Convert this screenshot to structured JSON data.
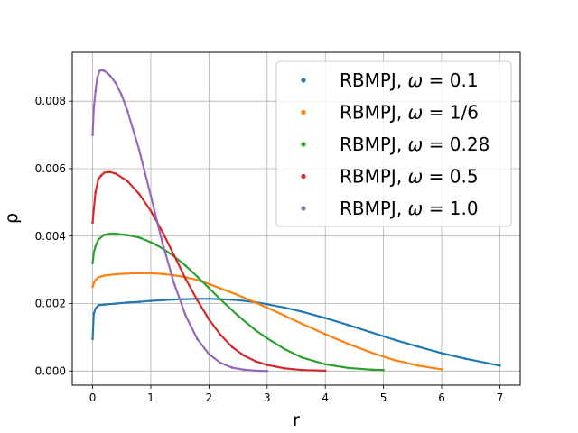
{
  "chart_data": {
    "type": "scatter",
    "title": "",
    "xlabel": "r",
    "ylabel": "ρ",
    "xlim": [
      -0.35,
      7.35
    ],
    "ylim": [
      -0.00042,
      0.00945
    ],
    "x_ticks": [
      0,
      1,
      2,
      3,
      4,
      5,
      6,
      7
    ],
    "x_tick_labels": [
      "0",
      "1",
      "2",
      "3",
      "4",
      "5",
      "6",
      "7"
    ],
    "y_ticks": [
      0,
      0.002,
      0.004,
      0.006,
      0.008
    ],
    "y_tick_labels": [
      "0.000",
      "0.002",
      "0.004",
      "0.006",
      "0.008"
    ],
    "grid": true,
    "legend_position": "top-right",
    "series": [
      {
        "name": "RBMPJ, ω = 0.1",
        "legend": {
          "prefix": "RBMPJ, ",
          "symbol": "ω",
          "suffix": " = 0.1"
        },
        "color": "#1f77b4",
        "x": [
          0.0,
          0.02,
          0.05,
          0.1,
          0.2,
          0.4,
          0.6,
          0.8,
          1.0,
          1.2,
          1.4,
          1.6,
          1.8,
          2.0,
          2.2,
          2.5,
          2.8,
          3.0,
          3.3,
          3.6,
          4.0,
          4.4,
          4.8,
          5.2,
          5.6,
          6.0,
          6.4,
          6.8,
          7.0
        ],
        "y": [
          0.00095,
          0.0017,
          0.00185,
          0.00195,
          0.00197,
          0.002,
          0.00203,
          0.00205,
          0.00208,
          0.0021,
          0.00212,
          0.00213,
          0.00214,
          0.00214,
          0.00213,
          0.0021,
          0.00204,
          0.00198,
          0.00188,
          0.00176,
          0.00157,
          0.00136,
          0.00114,
          0.00092,
          0.00072,
          0.00053,
          0.00037,
          0.00023,
          0.00016
        ]
      },
      {
        "name": "RBMPJ, ω = 1/6",
        "legend": {
          "prefix": "RBMPJ, ",
          "symbol": "ω",
          "suffix": " = 1/6"
        },
        "color": "#ff7f0e",
        "x": [
          0.0,
          0.02,
          0.05,
          0.1,
          0.2,
          0.4,
          0.6,
          0.8,
          1.0,
          1.2,
          1.4,
          1.6,
          1.8,
          2.0,
          2.2,
          2.5,
          2.8,
          3.0,
          3.3,
          3.6,
          4.0,
          4.4,
          4.8,
          5.2,
          5.6,
          6.0
        ],
        "y": [
          0.0025,
          0.0026,
          0.0027,
          0.00278,
          0.00283,
          0.00287,
          0.00289,
          0.0029,
          0.0029,
          0.00288,
          0.00284,
          0.00278,
          0.0027,
          0.00258,
          0.00245,
          0.00225,
          0.00203,
          0.00188,
          0.00164,
          0.0014,
          0.00109,
          0.0008,
          0.00054,
          0.00032,
          0.00016,
          5e-05
        ]
      },
      {
        "name": "RBMPJ, ω = 0.28",
        "legend": {
          "prefix": "RBMPJ, ",
          "symbol": "ω",
          "suffix": " = 0.28"
        },
        "color": "#2ca02c",
        "x": [
          0.0,
          0.02,
          0.05,
          0.1,
          0.2,
          0.3,
          0.4,
          0.6,
          0.8,
          1.0,
          1.2,
          1.4,
          1.6,
          1.8,
          2.0,
          2.2,
          2.5,
          2.8,
          3.0,
          3.3,
          3.6,
          4.0,
          4.4,
          4.8,
          5.0
        ],
        "y": [
          0.0032,
          0.0035,
          0.0037,
          0.0039,
          0.00404,
          0.00407,
          0.00407,
          0.00403,
          0.00396,
          0.00382,
          0.00364,
          0.0034,
          0.00312,
          0.0028,
          0.00246,
          0.00212,
          0.00164,
          0.00121,
          0.00097,
          0.00065,
          0.0004,
          0.0002,
          9e-05,
          4e-05,
          3e-05
        ]
      },
      {
        "name": "RBMPJ, ω = 0.5",
        "legend": {
          "prefix": "RBMPJ, ",
          "symbol": "ω",
          "suffix": " = 0.5"
        },
        "color": "#d62728",
        "x": [
          0.0,
          0.02,
          0.05,
          0.1,
          0.15,
          0.2,
          0.3,
          0.4,
          0.6,
          0.8,
          1.0,
          1.2,
          1.4,
          1.6,
          1.8,
          2.0,
          2.2,
          2.4,
          2.6,
          2.8,
          3.0,
          3.3,
          3.6,
          4.0
        ],
        "y": [
          0.0044,
          0.0048,
          0.0053,
          0.0057,
          0.0058,
          0.00588,
          0.0059,
          0.00585,
          0.00563,
          0.00525,
          0.00475,
          0.00413,
          0.00343,
          0.00273,
          0.0021,
          0.00153,
          0.00107,
          0.00071,
          0.00046,
          0.00029,
          0.00018,
          8e-05,
          3e-05,
          1e-05
        ]
      },
      {
        "name": "RBMPJ, ω = 1.0",
        "legend": {
          "prefix": "RBMPJ, ",
          "symbol": "ω",
          "suffix": " = 1.0"
        },
        "color": "#9467bd",
        "x": [
          0.0,
          0.02,
          0.05,
          0.08,
          0.12,
          0.16,
          0.2,
          0.25,
          0.3,
          0.4,
          0.5,
          0.6,
          0.8,
          1.0,
          1.2,
          1.4,
          1.6,
          1.8,
          2.0,
          2.2,
          2.4,
          2.6,
          2.8,
          3.0
        ],
        "y": [
          0.007,
          0.0078,
          0.0083,
          0.0087,
          0.0089,
          0.00892,
          0.0089,
          0.00884,
          0.00876,
          0.00853,
          0.00818,
          0.00771,
          0.00656,
          0.0052,
          0.0038,
          0.0026,
          0.00164,
          0.00095,
          0.0005,
          0.00024,
          0.0001,
          4e-05,
          1e-05,
          0.0
        ]
      }
    ]
  }
}
